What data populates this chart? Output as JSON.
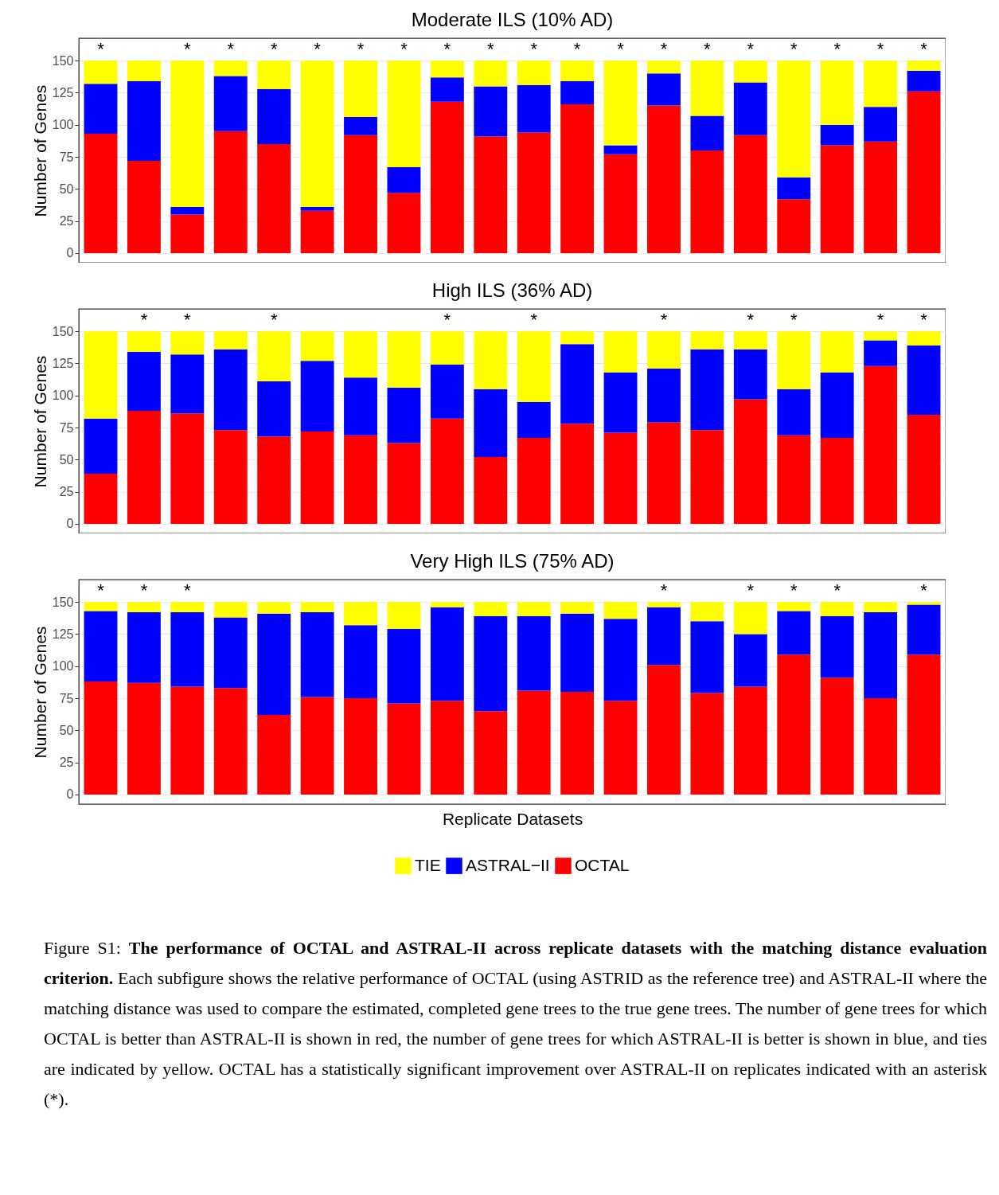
{
  "chart_data": [
    {
      "type": "bar",
      "stacked": true,
      "title": "Moderate ILS (10% AD)",
      "ylabel": "Number of Genes",
      "categories": [
        null,
        null,
        null,
        null,
        null,
        null,
        null,
        null,
        null,
        null,
        null,
        null,
        null,
        null,
        null,
        null,
        null,
        null,
        null,
        null
      ],
      "ylim": [
        -7.5,
        167.5
      ],
      "yticks": [
        0,
        25,
        50,
        75,
        100,
        125,
        150
      ],
      "grid": "y",
      "tick_labels": "y",
      "legend": false,
      "series": [
        {
          "color": "#ff0000",
          "values": [
            93,
            72,
            30,
            95,
            85,
            33,
            92,
            47,
            118,
            91,
            94,
            116,
            77,
            115,
            80,
            92,
            42,
            84,
            87,
            126
          ]
        },
        {
          "color": "#0000ff",
          "values": [
            39,
            62,
            6,
            43,
            43,
            3,
            14,
            20,
            19,
            39,
            37,
            18,
            7,
            25,
            27,
            41,
            17,
            16,
            27,
            16
          ]
        },
        {
          "color": "#ffff00",
          "values": [
            18,
            16,
            114,
            12,
            22,
            114,
            44,
            83,
            13,
            20,
            19,
            16,
            66,
            10,
            43,
            17,
            91,
            50,
            36,
            8
          ],
          "value_labels": [
            "*",
            null,
            "*",
            "*",
            "*",
            "*",
            "*",
            "*",
            "*",
            "*",
            "*",
            "*",
            "*",
            "*",
            "*",
            "*",
            "*",
            "*",
            "*",
            "*"
          ]
        }
      ]
    },
    {
      "type": "bar",
      "stacked": true,
      "title": "High ILS (36% AD)",
      "ylabel": "Number of Genes",
      "categories": [
        null,
        null,
        null,
        null,
        null,
        null,
        null,
        null,
        null,
        null,
        null,
        null,
        null,
        null,
        null,
        null,
        null,
        null,
        null,
        null
      ],
      "ylim": [
        -7.5,
        167.5
      ],
      "yticks": [
        0,
        25,
        50,
        75,
        100,
        125,
        150
      ],
      "grid": "y",
      "tick_labels": "y",
      "legend": false,
      "series": [
        {
          "color": "#ff0000",
          "values": [
            39,
            88,
            86,
            73,
            68,
            72,
            69,
            63,
            82,
            52,
            67,
            78,
            71,
            79,
            73,
            97,
            69,
            67,
            123,
            85
          ]
        },
        {
          "color": "#0000ff",
          "values": [
            43,
            46,
            46,
            63,
            43,
            55,
            45,
            43,
            42,
            53,
            28,
            62,
            47,
            42,
            63,
            39,
            36,
            51,
            20,
            54
          ]
        },
        {
          "color": "#ffff00",
          "values": [
            68,
            16,
            18,
            14,
            39,
            23,
            36,
            44,
            26,
            45,
            55,
            10,
            32,
            29,
            14,
            14,
            45,
            32,
            7,
            11
          ],
          "value_labels": [
            null,
            "*",
            "*",
            null,
            "*",
            null,
            null,
            null,
            "*",
            null,
            "*",
            null,
            null,
            "*",
            null,
            "*",
            "*",
            null,
            "*",
            "*"
          ]
        }
      ]
    },
    {
      "type": "bar",
      "stacked": true,
      "title": "Very High ILS (75% AD)",
      "ylabel": "Number of Genes",
      "xlabel": "Replicate Datasets",
      "categories": [
        null,
        null,
        null,
        null,
        null,
        null,
        null,
        null,
        null,
        null,
        null,
        null,
        null,
        null,
        null,
        null,
        null,
        null,
        null,
        null
      ],
      "ylim": [
        -7.5,
        167.5
      ],
      "yticks": [
        0,
        25,
        50,
        75,
        100,
        125,
        150
      ],
      "grid": "y",
      "tick_labels": "y",
      "legend": "bottom",
      "series": [
        {
          "name": "OCTAL",
          "color": "#ff0000",
          "values": [
            88,
            87,
            84,
            83,
            62,
            76,
            75,
            71,
            73,
            65,
            81,
            80,
            73,
            101,
            79,
            84,
            109,
            91,
            75,
            109
          ]
        },
        {
          "name": "ASTRAL−II",
          "color": "#0000ff",
          "values": [
            55,
            55,
            58,
            55,
            79,
            66,
            57,
            58,
            73,
            74,
            58,
            61,
            64,
            45,
            56,
            41,
            34,
            48,
            67,
            39
          ]
        },
        {
          "name": "TIE",
          "color": "#ffff00",
          "values": [
            7,
            8,
            8,
            12,
            9,
            8,
            18,
            21,
            4,
            11,
            11,
            9,
            13,
            4,
            15,
            25,
            7,
            11,
            8,
            2
          ],
          "value_labels": [
            "*",
            "*",
            "*",
            null,
            null,
            null,
            null,
            null,
            null,
            null,
            null,
            null,
            null,
            "*",
            null,
            "*",
            "*",
            "*",
            null,
            "*"
          ]
        }
      ],
      "annotations": [
        "Figure S1:",
        "The performance of OCTAL and ASTRAL-II across replicate datasets with the matching distance evaluation criterion.",
        "Each subfigure shows the relative performance of OCTAL (using ASTRID as the reference tree) and ASTRAL-II where the matching distance was used to compare the estimated, completed gene trees to the true gene trees. The number of gene trees for which OCTAL is better than ASTRAL-II is shown in red, the number of gene trees for which ASTRAL-II is better is shown in blue, and ties are indicated by yellow. OCTAL has a statistically significant improvement over ASTRAL-II on replicates indicated with an asterisk (*)."
      ]
    }
  ]
}
